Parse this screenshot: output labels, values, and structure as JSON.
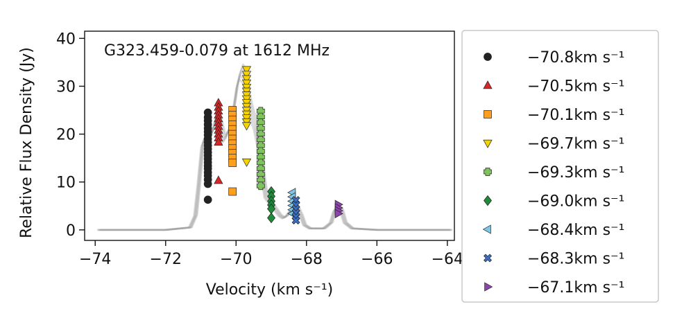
{
  "chart_data": {
    "type": "scatter",
    "title": "G323.459-0.079 at 1612 MHz",
    "xlabel": "Velocity (km s⁻¹)",
    "ylabel": "Relative Flux Density (Jy)",
    "xlim": [
      -74.3,
      -63.8
    ],
    "ylim": [
      -2.2,
      41.5
    ],
    "xticks": [
      -74,
      -72,
      -70,
      -68,
      -66,
      -64
    ],
    "xtick_labels": [
      "−74",
      "−72",
      "−70",
      "−68",
      "−66",
      "−64"
    ],
    "yticks": [
      0,
      10,
      20,
      30,
      40
    ],
    "ytick_labels": [
      "0",
      "10",
      "20",
      "30",
      "40"
    ],
    "grid": false,
    "legend_position": "outside-right",
    "background_spectrum": {
      "color": "#9a9a9a",
      "x": [
        -73.9,
        -72.0,
        -71.3,
        -71.15,
        -71.05,
        -70.95,
        -70.85,
        -70.75,
        -70.65,
        -70.55,
        -70.45,
        -70.35,
        -70.25,
        -70.15,
        -70.05,
        -69.95,
        -69.85,
        -69.75,
        -69.65,
        -69.55,
        -69.45,
        -69.35,
        -69.25,
        -69.15,
        -69.05,
        -68.95,
        -68.85,
        -68.75,
        -68.65,
        -68.55,
        -68.45,
        -68.35,
        -68.25,
        -68.15,
        -68.05,
        -67.9,
        -67.5,
        -67.3,
        -67.2,
        -67.1,
        -67.0,
        -66.9,
        -66.7,
        -66.0,
        -63.9
      ],
      "y": [
        0,
        0,
        0.5,
        3,
        10,
        18,
        20,
        19,
        21,
        24,
        22,
        19,
        20,
        22,
        26,
        31,
        33,
        32,
        27,
        24,
        22,
        18,
        12,
        7,
        6,
        5,
        4,
        3,
        2.5,
        3,
        4,
        5,
        4.5,
        3,
        1,
        0.3,
        0.3,
        1.5,
        4,
        5,
        4,
        1.5,
        0.3,
        0,
        0
      ]
    },
    "series": [
      {
        "name": "−70.8km s⁻¹",
        "marker": "circle",
        "color": "#222222",
        "x": -70.8,
        "values": [
          24.5,
          23.5,
          22.8,
          22.0,
          21.2,
          20.5,
          19.8,
          19.0,
          18.3,
          17.6,
          16.9,
          16.2,
          15.5,
          14.8,
          14.1,
          13.4,
          12.8,
          12.0,
          11.3,
          10.5,
          9.6,
          6.3
        ]
      },
      {
        "name": "−70.5km s⁻¹",
        "marker": "triangle-up",
        "color": "#d62728",
        "x": -70.5,
        "values": [
          26.5,
          25.6,
          24.8,
          24.0,
          23.2,
          22.4,
          21.6,
          20.8,
          20.0,
          19.2,
          18.3,
          10.3
        ]
      },
      {
        "name": "−70.1km s⁻¹",
        "marker": "square",
        "color": "#ff9f1c",
        "x": -70.1,
        "values": [
          25.0,
          24.0,
          23.0,
          22.0,
          21.0,
          20.0,
          19.0,
          18.0,
          17.0,
          16.0,
          15.0,
          14.0,
          8.0
        ]
      },
      {
        "name": "−69.7km s⁻¹",
        "marker": "triangle-down",
        "color": "#f5d300",
        "x": -69.7,
        "values": [
          33.5,
          32.5,
          31.6,
          30.7,
          29.8,
          29.0,
          28.2,
          27.4,
          26.6,
          25.8,
          25.0,
          24.2,
          23.4,
          22.6,
          21.8,
          14.2
        ]
      },
      {
        "name": "−69.3km s⁻¹",
        "marker": "plus",
        "color": "#7fc25e",
        "x": -69.3,
        "values": [
          24.8,
          23.6,
          22.4,
          21.2,
          20.0,
          18.8,
          17.6,
          16.4,
          15.2,
          14.0,
          12.8,
          11.6,
          10.4,
          9.2
        ]
      },
      {
        "name": "−69.0km s⁻¹",
        "marker": "diamond",
        "color": "#1e8a3a",
        "x": -69.0,
        "values": [
          8.0,
          7.0,
          6.0,
          5.2,
          4.4,
          2.5
        ]
      },
      {
        "name": "−68.4km s⁻¹",
        "marker": "triangle-left",
        "color": "#7fc6e4",
        "x": -68.4,
        "values": [
          7.8,
          6.9,
          6.0,
          5.1,
          4.2,
          3.4
        ]
      },
      {
        "name": "−68.3km s⁻¹",
        "marker": "x",
        "color": "#3a6fc4",
        "x": -68.3,
        "values": [
          6.2,
          5.2,
          4.4,
          3.6,
          2.8,
          2.0
        ]
      },
      {
        "name": "−67.1km s⁻¹",
        "marker": "triangle-right",
        "color": "#8e44ad",
        "x": -67.1,
        "values": [
          5.3,
          4.6,
          4.0,
          3.4
        ]
      }
    ]
  }
}
